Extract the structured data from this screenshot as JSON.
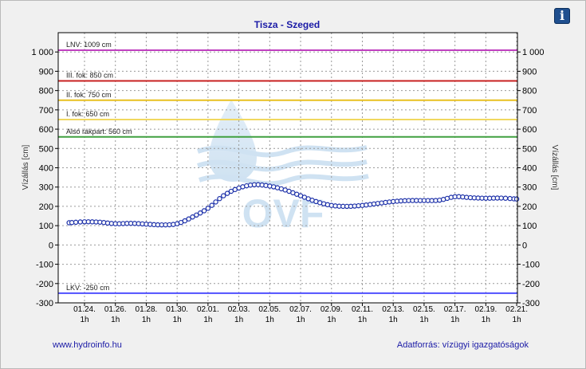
{
  "chart_data": {
    "type": "line",
    "title": "Tisza - Szeged",
    "ylabel": "Vízállás [cm]",
    "ylabel_right": "Vízállás [cm]",
    "ylim": [
      -300,
      1100
    ],
    "yticks": [
      -300,
      -200,
      -100,
      0,
      100,
      200,
      300,
      400,
      500,
      600,
      700,
      800,
      900,
      1000
    ],
    "ytick_labels": [
      "-300",
      "-200",
      "-100",
      "0",
      "100",
      "200",
      "300",
      "400",
      "500",
      "600",
      "700",
      "800",
      "900",
      "1 000"
    ],
    "grid": true,
    "x_ticks": [
      {
        "date": "01.24.",
        "hour": "1h"
      },
      {
        "date": "01.26.",
        "hour": "1h"
      },
      {
        "date": "01.28.",
        "hour": "1h"
      },
      {
        "date": "01.30.",
        "hour": "1h"
      },
      {
        "date": "02.01.",
        "hour": "1h"
      },
      {
        "date": "02.03.",
        "hour": "1h"
      },
      {
        "date": "02.05.",
        "hour": "1h"
      },
      {
        "date": "02.07.",
        "hour": "1h"
      },
      {
        "date": "02.09.",
        "hour": "1h"
      },
      {
        "date": "02.11.",
        "hour": "1h"
      },
      {
        "date": "02.13.",
        "hour": "1h"
      },
      {
        "date": "02.15.",
        "hour": "1h"
      },
      {
        "date": "02.17.",
        "hour": "1h"
      },
      {
        "date": "02.19.",
        "hour": "1h"
      },
      {
        "date": "02.21.",
        "hour": "1h"
      }
    ],
    "thresholds": [
      {
        "label": "LNV: 1009 cm",
        "value": 1009,
        "color": "#c040c0"
      },
      {
        "label": "III. fok: 850 cm",
        "value": 850,
        "color": "#c82020"
      },
      {
        "label": "II. fok: 750 cm",
        "value": 750,
        "color": "#e8c020"
      },
      {
        "label": "I. fok: 650 cm",
        "value": 650,
        "color": "#f0d860"
      },
      {
        "label": "Alsó rakpart: 560 cm",
        "value": 560,
        "color": "#40a040"
      },
      {
        "label": "LKV: -250 cm",
        "value": -250,
        "color": "#5050ff"
      }
    ],
    "series": [
      {
        "color": "#1b2fa8",
        "x_days_from_first_tick": [
          -1,
          0,
          1,
          2,
          3,
          4,
          5,
          6,
          7,
          8,
          9,
          10,
          11,
          12,
          13,
          14,
          15,
          16,
          17,
          18,
          19,
          20,
          21,
          22,
          23,
          24,
          25,
          26,
          27,
          28
        ],
        "values": [
          115,
          120,
          118,
          110,
          112,
          108,
          104,
          110,
          145,
          190,
          255,
          295,
          312,
          305,
          285,
          255,
          225,
          205,
          200,
          205,
          215,
          225,
          230,
          230,
          232,
          250,
          245,
          242,
          243,
          238
        ]
      }
    ]
  },
  "footer": {
    "source_url": "www.hydroinfo.hu",
    "source_credit": "Adatforrás: vízügyi igazgatóságok"
  },
  "info_button": {
    "label": "i",
    "icon": "info-icon"
  },
  "watermark": {
    "text": "OVF",
    "icon": "water-drop-icon"
  }
}
